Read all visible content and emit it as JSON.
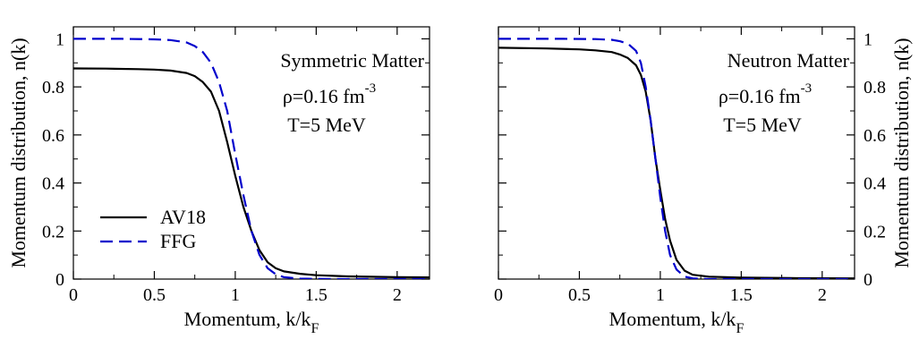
{
  "chart_data": [
    {
      "type": "line",
      "annotation": {
        "line1": "Symmetric Matter",
        "line2_prefix": "ρ=0.16 fm",
        "line2_sup": "-3",
        "line3": "T=5 MeV"
      },
      "xlabel": {
        "main": "Momentum, k/k",
        "sub": "F"
      },
      "ylabel": "Momentum distribution, n(k)",
      "xlim": [
        0,
        2.2
      ],
      "ylim": [
        0,
        1.05
      ],
      "xticks": [
        "0",
        "0.5",
        "1",
        "1.5",
        "2"
      ],
      "yticks": [
        "0",
        "0.2",
        "0.4",
        "0.6",
        "0.8",
        "1"
      ],
      "legend": {
        "placement": "bottom-left",
        "entries": [
          "AV18",
          "FFG"
        ]
      },
      "series": [
        {
          "name": "AV18",
          "color": "#000000",
          "dash": "solid",
          "x": [
            0,
            0.2,
            0.4,
            0.5,
            0.6,
            0.7,
            0.75,
            0.8,
            0.85,
            0.9,
            0.95,
            1.0,
            1.05,
            1.1,
            1.15,
            1.2,
            1.25,
            1.3,
            1.4,
            1.5,
            1.7,
            2.0,
            2.2
          ],
          "y": [
            0.877,
            0.876,
            0.874,
            0.872,
            0.868,
            0.858,
            0.845,
            0.82,
            0.78,
            0.7,
            0.57,
            0.43,
            0.3,
            0.2,
            0.12,
            0.07,
            0.045,
            0.032,
            0.022,
            0.016,
            0.011,
            0.008,
            0.007
          ]
        },
        {
          "name": "FFG",
          "color": "#0000cc",
          "dash": "dashed",
          "x": [
            0,
            0.3,
            0.5,
            0.6,
            0.7,
            0.75,
            0.8,
            0.85,
            0.9,
            0.95,
            1.0,
            1.05,
            1.1,
            1.15,
            1.2,
            1.25,
            1.3,
            1.4,
            1.6,
            2.0,
            2.2
          ],
          "y": [
            1.0,
            1.0,
            0.998,
            0.995,
            0.985,
            0.97,
            0.945,
            0.9,
            0.82,
            0.7,
            0.52,
            0.35,
            0.2,
            0.1,
            0.045,
            0.02,
            0.008,
            0.002,
            0.0,
            0.0,
            0.0
          ]
        }
      ]
    },
    {
      "type": "line",
      "annotation": {
        "line1": "Neutron Matter",
        "line2_prefix": "ρ=0.16 fm",
        "line2_sup": "-3",
        "line3": "T=5 MeV"
      },
      "xlabel": {
        "main": "Momentum, k/k",
        "sub": "F"
      },
      "ylabel": "Momentum distribution, n(k)",
      "xlim": [
        0,
        2.2
      ],
      "ylim": [
        0,
        1.05
      ],
      "xticks": [
        "0",
        "0.5",
        "1",
        "1.5",
        "2"
      ],
      "yticks": [
        "0",
        "0.2",
        "0.4",
        "0.6",
        "0.8",
        "1"
      ],
      "series": [
        {
          "name": "AV18",
          "color": "#000000",
          "dash": "solid",
          "x": [
            0,
            0.3,
            0.5,
            0.6,
            0.7,
            0.75,
            0.8,
            0.85,
            0.88,
            0.91,
            0.94,
            0.97,
            1.0,
            1.03,
            1.06,
            1.1,
            1.15,
            1.2,
            1.3,
            1.5,
            1.8,
            2.2
          ],
          "y": [
            0.963,
            0.96,
            0.956,
            0.952,
            0.945,
            0.935,
            0.92,
            0.89,
            0.85,
            0.78,
            0.66,
            0.5,
            0.37,
            0.25,
            0.16,
            0.08,
            0.035,
            0.018,
            0.01,
            0.006,
            0.004,
            0.003
          ]
        },
        {
          "name": "FFG",
          "color": "#0000cc",
          "dash": "dashed",
          "x": [
            0,
            0.4,
            0.6,
            0.7,
            0.75,
            0.8,
            0.85,
            0.88,
            0.91,
            0.94,
            0.97,
            1.0,
            1.03,
            1.06,
            1.1,
            1.15,
            1.2,
            1.3,
            1.6,
            2.2
          ],
          "y": [
            1.0,
            1.0,
            0.999,
            0.996,
            0.99,
            0.98,
            0.95,
            0.9,
            0.8,
            0.66,
            0.5,
            0.34,
            0.2,
            0.1,
            0.04,
            0.01,
            0.003,
            0.0,
            0.0,
            0.0
          ]
        }
      ]
    }
  ]
}
